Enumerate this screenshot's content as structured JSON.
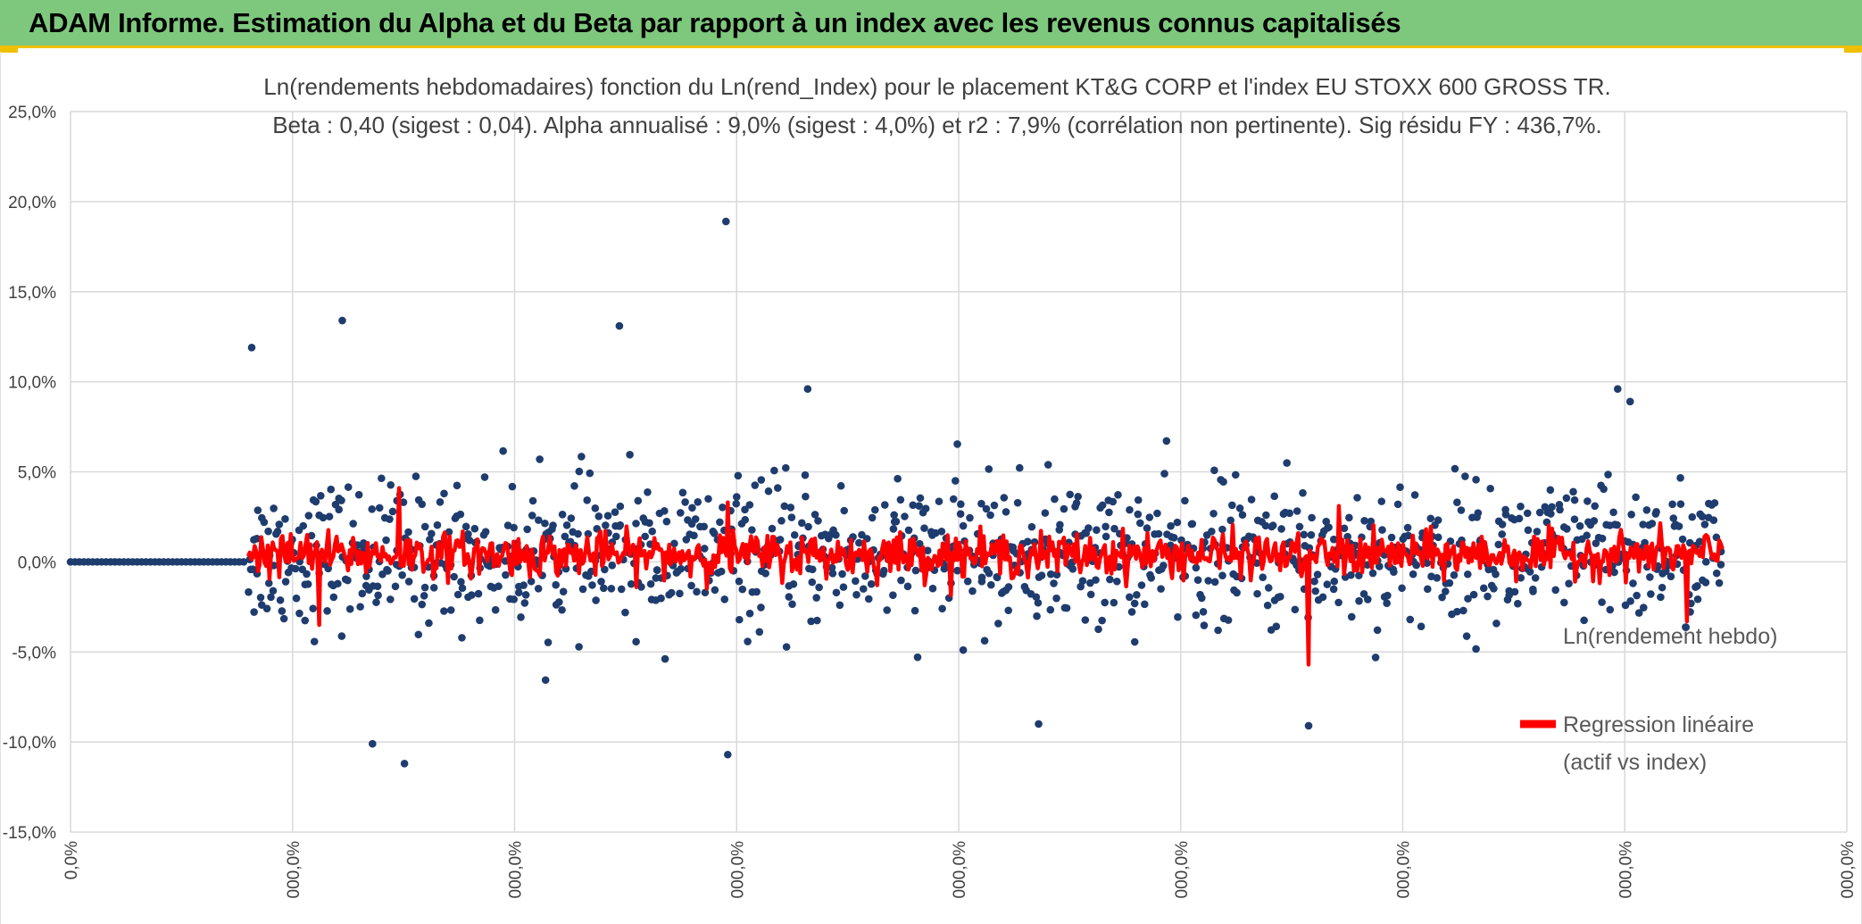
{
  "header": {
    "title": "ADAM Informe. Estimation du Alpha et du Beta par rapport à un index avec les revenus connus capitalisés",
    "background_color": "#7ec87e",
    "accent_color": "#f0c000"
  },
  "chart_data": {
    "type": "scatter",
    "title": "Ln(rendements hebdomadaires) fonction du Ln(rend_Index) pour le placement KT&G CORP et l'index EU STOXX 600 GROSS TR.",
    "subtitle": "Beta : 0,40 (sigest : 0,04). Alpha annualisé : 9,0% (sigest : 4,0%) et r2 : 7,9% (corrélation non pertinente). Sig résidu FY : 436,7%.",
    "xlabel": "",
    "ylabel": "",
    "ylim": [
      -0.15,
      0.25
    ],
    "y_tick_labels": [
      "25,0%",
      "20,0%",
      "15,0%",
      "10,0%",
      "5,0%",
      "0,0%",
      "-5,0%",
      "-10,0%",
      "-15,0%"
    ],
    "x_tick_labels": [
      "0,0%",
      "000,0%",
      "000,0%",
      "000,0%",
      "000,0%",
      "000,0%",
      "000,0%",
      "000,0%",
      "000,0%"
    ],
    "grid": true,
    "legend_position": "right",
    "series": [
      {
        "name": "Ln(rendement hebdo)",
        "color": "#1f3c6e",
        "marker": "circle",
        "x_range": [
          0,
          1.0
        ],
        "x_start_nonzero": 0.1,
        "notable_points": [
          {
            "x": 0.102,
            "y": 0.119
          },
          {
            "x": 0.153,
            "y": 0.134
          },
          {
            "x": 0.309,
            "y": 0.131
          },
          {
            "x": 0.369,
            "y": 0.189
          },
          {
            "x": 0.415,
            "y": 0.096
          },
          {
            "x": 0.871,
            "y": 0.096
          },
          {
            "x": 0.878,
            "y": 0.089
          },
          {
            "x": 0.188,
            "y": -0.112
          },
          {
            "x": 0.37,
            "y": -0.107
          },
          {
            "x": 0.545,
            "y": -0.09
          },
          {
            "x": 0.697,
            "y": -0.091
          },
          {
            "x": 0.17,
            "y": -0.101
          }
        ],
        "typical_spread": 0.04
      },
      {
        "name": "Regression linéaire\n(actif vs index)",
        "color": "#ff0000",
        "marker": "line",
        "x_range": [
          0.1,
          0.93
        ],
        "center": 0.004,
        "typical_spread": 0.01,
        "notable_points": [
          {
            "x": 0.185,
            "y": 0.041
          },
          {
            "x": 0.37,
            "y": 0.033
          },
          {
            "x": 0.697,
            "y": -0.057
          },
          {
            "x": 0.714,
            "y": 0.031
          },
          {
            "x": 0.91,
            "y": -0.033
          },
          {
            "x": 0.14,
            "y": -0.035
          }
        ]
      }
    ]
  }
}
